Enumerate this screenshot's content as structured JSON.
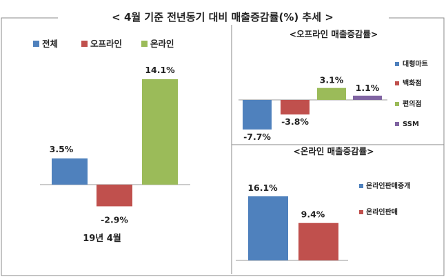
{
  "title": "< 4월 기준 전년동기 대비 매출증감률(%) 추세 >",
  "colors": {
    "blue": "#4f81bd",
    "red": "#c0504d",
    "green": "#9bbb59",
    "purple": "#8064a2"
  },
  "chart_data": [
    {
      "type": "bar",
      "title": "",
      "categories": [
        "전체",
        "오프라인",
        "온라인"
      ],
      "values": [
        3.5,
        -2.9,
        14.1
      ],
      "value_labels": [
        "3.5%",
        "-2.9%",
        "14.1%"
      ],
      "xlabel": "19년 4월",
      "legend": [
        "전체",
        "오프라인",
        "온라인"
      ],
      "legend_position": "top"
    },
    {
      "type": "bar",
      "title": "<오프라인 매출증감률>",
      "categories": [
        "대형마트",
        "백화점",
        "편의점",
        "SSM"
      ],
      "values": [
        -7.7,
        -3.8,
        3.1,
        1.1
      ],
      "value_labels": [
        "-7.7%",
        "-3.8%",
        "3.1%",
        "1.1%"
      ],
      "legend": [
        "대형마트",
        "백화점",
        "편의점",
        "SSM"
      ],
      "legend_position": "right"
    },
    {
      "type": "bar",
      "title": "<온라인 매출증감률>",
      "categories": [
        "온라인판매중개",
        "온라인판매"
      ],
      "values": [
        16.1,
        9.4
      ],
      "value_labels": [
        "16.1%",
        "9.4%"
      ],
      "legend": [
        "온라인판매중개",
        "온라인판매"
      ],
      "legend_position": "right"
    }
  ]
}
